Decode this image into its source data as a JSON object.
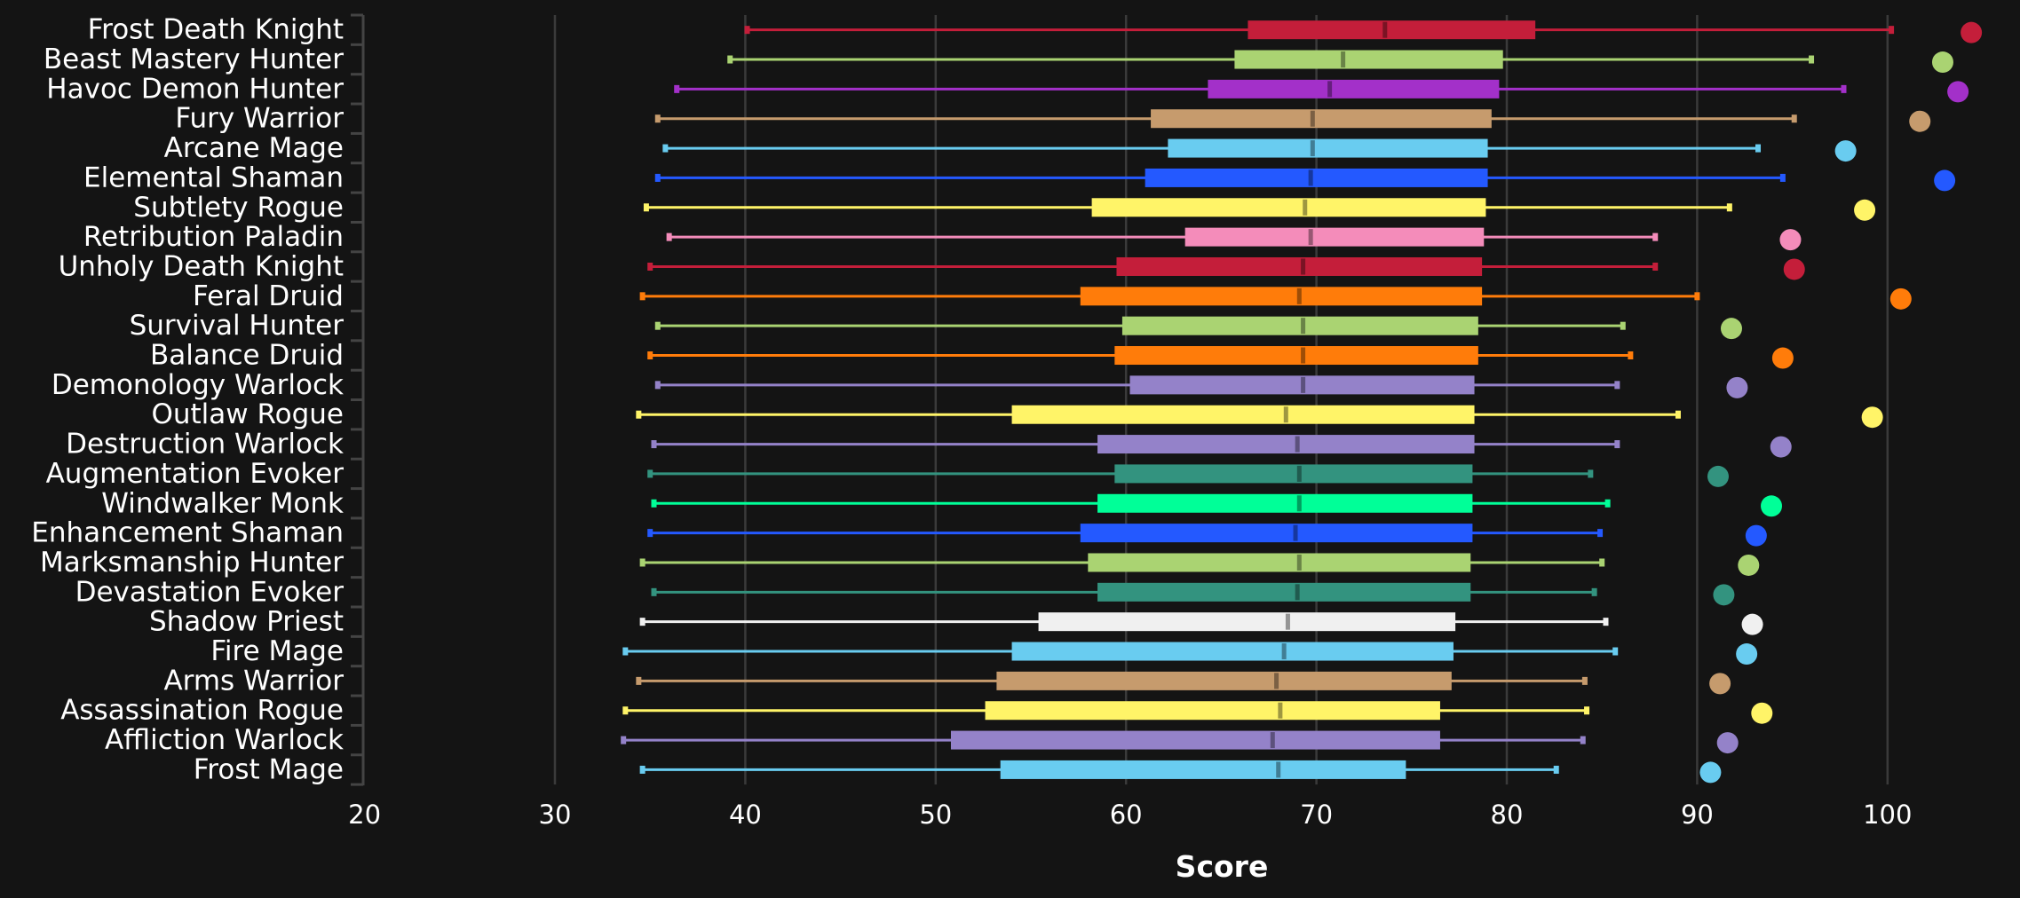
{
  "chart_data": {
    "type": "boxplot-horizontal",
    "title": "",
    "xlabel": "Score",
    "ylabel": "",
    "xlim": [
      20,
      104
    ],
    "xticks": [
      20,
      30,
      40,
      50,
      60,
      70,
      80,
      90,
      100
    ],
    "grid": "vertical",
    "legend": "none",
    "background_color": "#141414",
    "series": [
      {
        "name": "Frost Death Knight",
        "color": "#c41e3a",
        "min": 40.1,
        "q1": 66.4,
        "median": 73.6,
        "q3": 81.5,
        "max": 100.2,
        "outlier": 104.4
      },
      {
        "name": "Beast Mastery Hunter",
        "color": "#aad372",
        "min": 39.2,
        "q1": 65.7,
        "median": 71.4,
        "q3": 79.8,
        "max": 96.0,
        "outlier": 102.9
      },
      {
        "name": "Havoc Demon Hunter",
        "color": "#a330c9",
        "min": 36.4,
        "q1": 64.3,
        "median": 70.7,
        "q3": 79.6,
        "max": 97.7,
        "outlier": 103.7
      },
      {
        "name": "Fury Warrior",
        "color": "#c69b6d",
        "min": 35.4,
        "q1": 61.3,
        "median": 69.8,
        "q3": 79.2,
        "max": 95.1,
        "outlier": 101.7
      },
      {
        "name": "Arcane Mage",
        "color": "#69ccf0",
        "min": 35.8,
        "q1": 62.2,
        "median": 69.8,
        "q3": 79.0,
        "max": 93.2,
        "outlier": 97.8
      },
      {
        "name": "Elemental Shaman",
        "color": "#2459ff",
        "min": 35.4,
        "q1": 61.0,
        "median": 69.7,
        "q3": 79.0,
        "max": 94.5,
        "outlier": 103.0
      },
      {
        "name": "Subtlety Rogue",
        "color": "#fff468",
        "min": 34.8,
        "q1": 58.2,
        "median": 69.4,
        "q3": 78.9,
        "max": 91.7,
        "outlier": 98.8
      },
      {
        "name": "Retribution Paladin",
        "color": "#f48cba",
        "min": 36.0,
        "q1": 63.1,
        "median": 69.7,
        "q3": 78.8,
        "max": 87.8,
        "outlier": 94.9
      },
      {
        "name": "Unholy Death Knight",
        "color": "#c41e3a",
        "min": 35.0,
        "q1": 59.5,
        "median": 69.3,
        "q3": 78.7,
        "max": 87.8,
        "outlier": 95.1
      },
      {
        "name": "Feral Druid",
        "color": "#ff7c0a",
        "min": 34.6,
        "q1": 57.6,
        "median": 69.1,
        "q3": 78.7,
        "max": 90.0,
        "outlier": 100.7
      },
      {
        "name": "Survival Hunter",
        "color": "#aad372",
        "min": 35.4,
        "q1": 59.8,
        "median": 69.3,
        "q3": 78.5,
        "max": 86.1,
        "outlier": 91.8
      },
      {
        "name": "Balance Druid",
        "color": "#ff7c0a",
        "min": 35.0,
        "q1": 59.4,
        "median": 69.3,
        "q3": 78.5,
        "max": 86.5,
        "outlier": 94.5
      },
      {
        "name": "Demonology Warlock",
        "color": "#9482c9",
        "min": 35.4,
        "q1": 60.2,
        "median": 69.3,
        "q3": 78.3,
        "max": 85.8,
        "outlier": 92.1
      },
      {
        "name": "Outlaw Rogue",
        "color": "#fff468",
        "min": 34.4,
        "q1": 54.0,
        "median": 68.4,
        "q3": 78.3,
        "max": 89.0,
        "outlier": 99.2
      },
      {
        "name": "Destruction Warlock",
        "color": "#9482c9",
        "min": 35.2,
        "q1": 58.5,
        "median": 69.0,
        "q3": 78.3,
        "max": 85.8,
        "outlier": 94.4
      },
      {
        "name": "Augmentation Evoker",
        "color": "#33937f",
        "min": 35.0,
        "q1": 59.4,
        "median": 69.1,
        "q3": 78.2,
        "max": 84.4,
        "outlier": 91.1
      },
      {
        "name": "Windwalker Monk",
        "color": "#00ff98",
        "min": 35.2,
        "q1": 58.5,
        "median": 69.1,
        "q3": 78.2,
        "max": 85.3,
        "outlier": 93.9
      },
      {
        "name": "Enhancement Shaman",
        "color": "#2459ff",
        "min": 35.0,
        "q1": 57.6,
        "median": 68.9,
        "q3": 78.2,
        "max": 84.9,
        "outlier": 93.1
      },
      {
        "name": "Marksmanship Hunter",
        "color": "#aad372",
        "min": 34.6,
        "q1": 58.0,
        "median": 69.1,
        "q3": 78.1,
        "max": 85.0,
        "outlier": 92.7
      },
      {
        "name": "Devastation Evoker",
        "color": "#33937f",
        "min": 35.2,
        "q1": 58.5,
        "median": 69.0,
        "q3": 78.1,
        "max": 84.6,
        "outlier": 91.4
      },
      {
        "name": "Shadow Priest",
        "color": "#f0f0f0",
        "min": 34.6,
        "q1": 55.4,
        "median": 68.5,
        "q3": 77.3,
        "max": 85.2,
        "outlier": 92.9
      },
      {
        "name": "Fire Mage",
        "color": "#69ccf0",
        "min": 33.7,
        "q1": 54.0,
        "median": 68.3,
        "q3": 77.2,
        "max": 85.7,
        "outlier": 92.6
      },
      {
        "name": "Arms Warrior",
        "color": "#c69b6d",
        "min": 34.4,
        "q1": 53.2,
        "median": 67.9,
        "q3": 77.1,
        "max": 84.1,
        "outlier": 91.2
      },
      {
        "name": "Assassination Rogue",
        "color": "#fff468",
        "min": 33.7,
        "q1": 52.6,
        "median": 68.1,
        "q3": 76.5,
        "max": 84.2,
        "outlier": 93.4
      },
      {
        "name": "Affliction Warlock",
        "color": "#9482c9",
        "min": 33.6,
        "q1": 50.8,
        "median": 67.7,
        "q3": 76.5,
        "max": 84.0,
        "outlier": 91.6
      },
      {
        "name": "Frost Mage",
        "color": "#69ccf0",
        "min": 34.6,
        "q1": 53.4,
        "median": 68.0,
        "q3": 74.7,
        "max": 82.6,
        "outlier": 90.7
      }
    ]
  }
}
